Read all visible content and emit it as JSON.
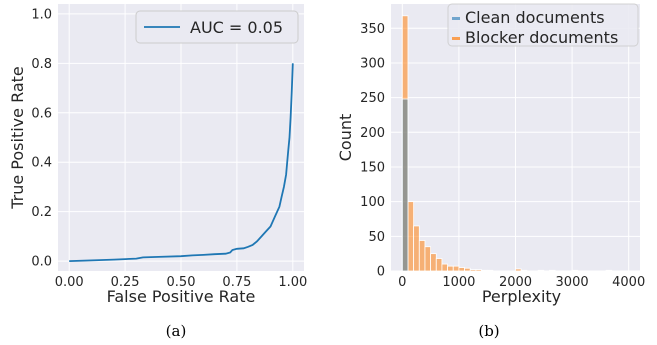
{
  "chart_data": [
    {
      "type": "line",
      "panel_label": "(a)",
      "title": "",
      "xlabel": "False Positive Rate",
      "ylabel": "True Positive Rate",
      "xlim": [
        -0.05,
        1.05
      ],
      "ylim": [
        -0.04,
        1.04
      ],
      "xticks": [
        "0.00",
        "0.25",
        "0.50",
        "0.75",
        "1.00"
      ],
      "yticks": [
        "0.0",
        "0.2",
        "0.4",
        "0.6",
        "0.8",
        "1.0"
      ],
      "grid": true,
      "legend_position": "top-right",
      "series": [
        {
          "name": "AUC = 0.05",
          "color": "#1f77b4",
          "x": [
            0.0,
            0.1,
            0.2,
            0.3,
            0.33,
            0.4,
            0.5,
            0.55,
            0.6,
            0.65,
            0.7,
            0.72,
            0.73,
            0.75,
            0.78,
            0.8,
            0.82,
            0.84,
            0.86,
            0.88,
            0.9,
            0.92,
            0.94,
            0.95,
            0.96,
            0.97,
            0.975,
            0.98,
            0.985,
            0.99,
            0.995,
            1.0
          ],
          "y": [
            0.0,
            0.003,
            0.006,
            0.01,
            0.015,
            0.017,
            0.02,
            0.023,
            0.025,
            0.028,
            0.03,
            0.035,
            0.045,
            0.05,
            0.052,
            0.058,
            0.065,
            0.08,
            0.1,
            0.12,
            0.14,
            0.18,
            0.22,
            0.26,
            0.3,
            0.35,
            0.4,
            0.45,
            0.5,
            0.58,
            0.68,
            0.8
          ]
        }
      ]
    },
    {
      "type": "bar",
      "panel_label": "(b)",
      "title": "",
      "xlabel": "Perplexity",
      "ylabel": "Count",
      "xlim": [
        -200,
        4200
      ],
      "ylim": [
        0,
        385
      ],
      "xticks": [
        "0",
        "1000",
        "2000",
        "3000",
        "4000"
      ],
      "xtick_values": [
        0,
        1000,
        2000,
        3000,
        4000
      ],
      "yticks": [
        "0",
        "50",
        "100",
        "150",
        "200",
        "250",
        "300",
        "350"
      ],
      "ytick_values": [
        0,
        50,
        100,
        150,
        200,
        250,
        300,
        350
      ],
      "bin_width": 100,
      "bin_starts": [
        0,
        100,
        200,
        300,
        400,
        500,
        600,
        700,
        800,
        900,
        1000,
        1100,
        1200,
        1300,
        1400,
        1500,
        2000,
        2100,
        2400,
        2600,
        3000,
        3600
      ],
      "grid": true,
      "legend_position": "top-right",
      "series": [
        {
          "name": "Clean documents",
          "color": "#1f77b4",
          "values": [
            248,
            0,
            0,
            0,
            0,
            0,
            0,
            0,
            0,
            0,
            0,
            0,
            0,
            0,
            0,
            0,
            0,
            0,
            0,
            0,
            0,
            0
          ]
        },
        {
          "name": "Blocker documents",
          "color": "#ff7f0e",
          "values": [
            368,
            100,
            65,
            44,
            35,
            25,
            18,
            10,
            7,
            7,
            5,
            4,
            2,
            2,
            1,
            1,
            3,
            1,
            1,
            1,
            1,
            1
          ]
        }
      ]
    }
  ]
}
